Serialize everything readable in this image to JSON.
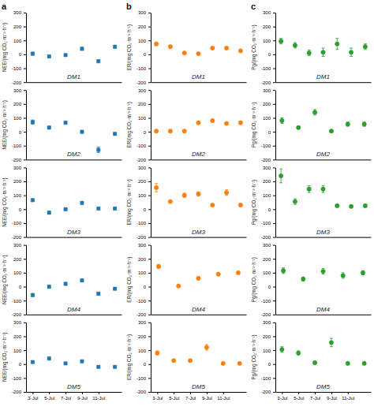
{
  "chart_data": [
    {
      "type": "scatter",
      "title": "a",
      "y_label": "NEE/(mg CO₂·m⁻²·h⁻¹)",
      "annotations": [
        "DM1"
      ],
      "marker": "square",
      "x": [
        0,
        1,
        2,
        3,
        4,
        5
      ],
      "values": [
        5,
        -15,
        -5,
        40,
        -50,
        55
      ],
      "errors": [
        10,
        8,
        8,
        10,
        10,
        10
      ],
      "xlim": [
        -0.4,
        5.4
      ],
      "ylim": [
        -200,
        300
      ],
      "yticks": [
        -200,
        -100,
        0,
        100,
        200,
        300
      ],
      "tick_labels": "y"
    },
    {
      "type": "scatter",
      "title": "b",
      "y_label": "ER/(mg CO₂·m⁻²·h⁻¹)",
      "annotations": [
        "DM1"
      ],
      "marker": "circle",
      "x": [
        0,
        1,
        2,
        3,
        4,
        5,
        6
      ],
      "values": [
        75,
        55,
        10,
        5,
        45,
        45,
        25
      ],
      "errors": [
        12,
        10,
        8,
        8,
        8,
        8,
        8
      ],
      "xlim": [
        -0.4,
        6.4
      ],
      "ylim": [
        -200,
        300
      ],
      "yticks": [
        -200,
        -100,
        0,
        100,
        200,
        300
      ],
      "tick_labels": "y"
    },
    {
      "type": "scatter",
      "title": "c",
      "y_label": "Pg/(mg CO₂·m⁻²·h⁻¹)",
      "annotations": [
        "DM1"
      ],
      "marker": "circle",
      "x": [
        0,
        1,
        2,
        3,
        4,
        5,
        6
      ],
      "values": [
        95,
        65,
        10,
        15,
        75,
        15,
        55
      ],
      "errors": [
        20,
        20,
        20,
        30,
        40,
        30,
        20
      ],
      "xlim": [
        -0.4,
        6.4
      ],
      "ylim": [
        -200,
        300
      ],
      "yticks": [
        -200,
        -100,
        0,
        100,
        200,
        300
      ],
      "tick_labels": "y"
    },
    {
      "type": "scatter",
      "y_label": "NEE/(mg CO₂·m⁻²·h⁻¹)",
      "annotations": [
        "DM2"
      ],
      "marker": "square",
      "x": [
        0,
        1,
        2,
        3,
        4,
        5
      ],
      "values": [
        70,
        30,
        65,
        0,
        -130,
        -15
      ],
      "errors": [
        15,
        10,
        10,
        10,
        20,
        10
      ],
      "xlim": [
        -0.4,
        5.4
      ],
      "ylim": [
        -200,
        300
      ],
      "yticks": [
        -200,
        -100,
        0,
        100,
        200,
        300
      ],
      "tick_labels": "y"
    },
    {
      "type": "scatter",
      "y_label": "ER/(mg CO₂·m⁻²·h⁻¹)",
      "annotations": [
        "DM2"
      ],
      "marker": "circle",
      "x": [
        0,
        1,
        2,
        3,
        4,
        5,
        6
      ],
      "values": [
        5,
        5,
        5,
        65,
        80,
        60,
        65
      ],
      "errors": [
        8,
        8,
        8,
        10,
        10,
        10,
        10
      ],
      "xlim": [
        -0.4,
        6.4
      ],
      "ylim": [
        -200,
        300
      ],
      "yticks": [
        -200,
        -100,
        0,
        100,
        200,
        300
      ],
      "tick_labels": "y"
    },
    {
      "type": "scatter",
      "y_label": "Pg/(mg CO₂·m⁻²·h⁻¹)",
      "annotations": [
        "DM2"
      ],
      "marker": "circle",
      "x": [
        0,
        1,
        2,
        3,
        4,
        5
      ],
      "values": [
        80,
        30,
        140,
        5,
        55,
        55
      ],
      "errors": [
        20,
        10,
        20,
        10,
        15,
        15
      ],
      "xlim": [
        -0.4,
        5.4
      ],
      "ylim": [
        -200,
        300
      ],
      "yticks": [
        -200,
        -100,
        0,
        100,
        200,
        300
      ],
      "tick_labels": "y"
    },
    {
      "type": "scatter",
      "y_label": "NEE/(mg CO₂·m⁻²·h⁻¹)",
      "annotations": [
        "DM3"
      ],
      "marker": "square",
      "x": [
        0,
        1,
        2,
        3,
        4,
        5
      ],
      "values": [
        65,
        -25,
        0,
        45,
        5,
        5
      ],
      "errors": [
        10,
        10,
        8,
        10,
        8,
        8
      ],
      "xlim": [
        -0.4,
        5.4
      ],
      "ylim": [
        -200,
        300
      ],
      "yticks": [
        -200,
        -100,
        0,
        100,
        200,
        300
      ],
      "tick_labels": "y"
    },
    {
      "type": "scatter",
      "y_label": "ER/(mg CO₂·m⁻²·h⁻¹)",
      "annotations": [
        "DM3"
      ],
      "marker": "circle",
      "x": [
        0,
        1,
        2,
        3,
        4,
        5,
        6
      ],
      "values": [
        155,
        55,
        100,
        110,
        30,
        120,
        30
      ],
      "errors": [
        30,
        10,
        15,
        15,
        8,
        20,
        10
      ],
      "xlim": [
        -0.4,
        6.4
      ],
      "ylim": [
        -200,
        300
      ],
      "yticks": [
        -200,
        -100,
        0,
        100,
        200,
        300
      ],
      "tick_labels": "y"
    },
    {
      "type": "scatter",
      "y_label": "Pg/(mg CO₂·m⁻²·h⁻¹)",
      "annotations": [
        "DM3"
      ],
      "marker": "circle",
      "x": [
        0,
        1,
        2,
        3,
        4,
        5,
        6
      ],
      "values": [
        240,
        55,
        145,
        145,
        25,
        20,
        25
      ],
      "errors": [
        50,
        20,
        25,
        25,
        10,
        10,
        10
      ],
      "xlim": [
        -0.4,
        6.4
      ],
      "ylim": [
        -200,
        300
      ],
      "yticks": [
        -200,
        -100,
        0,
        100,
        200,
        300
      ],
      "tick_labels": "y"
    },
    {
      "type": "scatter",
      "y_label": "NEE/(mg CO₂·m⁻²·h⁻¹)",
      "annotations": [
        "DM4"
      ],
      "marker": "square",
      "x": [
        0,
        1,
        2,
        3,
        4,
        5
      ],
      "values": [
        -60,
        0,
        20,
        45,
        -50,
        -15
      ],
      "errors": [
        10,
        10,
        10,
        10,
        10,
        8
      ],
      "xlim": [
        -0.4,
        5.4
      ],
      "ylim": [
        -200,
        300
      ],
      "yticks": [
        -200,
        -100,
        0,
        100,
        200,
        300
      ],
      "tick_labels": "y"
    },
    {
      "type": "scatter",
      "y_label": "ER/(mg CO₂·m⁻²·h⁻¹)",
      "annotations": [
        "DM4"
      ],
      "marker": "circle",
      "x": [
        0,
        1,
        2,
        3,
        4
      ],
      "values": [
        145,
        5,
        60,
        90,
        100
      ],
      "errors": [
        15,
        8,
        10,
        10,
        10
      ],
      "xlim": [
        -0.4,
        4.4
      ],
      "ylim": [
        -200,
        300
      ],
      "yticks": [
        -200,
        -100,
        0,
        100,
        200,
        300
      ],
      "tick_labels": "y"
    },
    {
      "type": "scatter",
      "y_label": "Pg/(mg CO₂·m⁻²·h⁻¹)",
      "annotations": [
        "DM4"
      ],
      "marker": "circle",
      "x": [
        0,
        1,
        2,
        3,
        4
      ],
      "values": [
        115,
        55,
        110,
        80,
        100
      ],
      "errors": [
        20,
        15,
        20,
        20,
        15
      ],
      "xlim": [
        -0.4,
        4.4
      ],
      "ylim": [
        -200,
        300
      ],
      "yticks": [
        -200,
        -100,
        0,
        100,
        200,
        300
      ],
      "tick_labels": "y"
    },
    {
      "type": "scatter",
      "y_label": "NEE/(mg CO₂·m⁻²·h⁻¹)",
      "annotations": [
        "DM5"
      ],
      "marker": "square",
      "x": [
        0,
        1,
        2,
        3,
        4,
        5
      ],
      "values": [
        15,
        40,
        5,
        20,
        -20,
        -20
      ],
      "errors": [
        8,
        10,
        8,
        8,
        8,
        8
      ],
      "xlim": [
        -0.4,
        5.4
      ],
      "ylim": [
        -200,
        300
      ],
      "yticks": [
        -200,
        -100,
        0,
        100,
        200,
        300
      ],
      "xticks": [
        {
          "value": 0,
          "label": "3-Jul"
        },
        {
          "value": 1,
          "label": "5-Jul"
        },
        {
          "value": 2,
          "label": "7-Jul"
        },
        {
          "value": 3,
          "label": "9-Jul"
        },
        {
          "value": 4,
          "label": "11-Jul"
        }
      ]
    },
    {
      "type": "scatter",
      "y_label": "ER/(mg CO₂·m⁻²·h⁻¹)",
      "annotations": [
        "DM5"
      ],
      "marker": "circle",
      "x": [
        0,
        1,
        2,
        3,
        4,
        5
      ],
      "values": [
        80,
        25,
        25,
        120,
        5,
        5
      ],
      "errors": [
        15,
        8,
        8,
        20,
        8,
        8
      ],
      "xlim": [
        -0.4,
        5.4
      ],
      "ylim": [
        -200,
        300
      ],
      "yticks": [
        -200,
        -100,
        0,
        100,
        200,
        300
      ],
      "xticks": [
        {
          "value": 0,
          "label": "3-Jul"
        },
        {
          "value": 1,
          "label": "5-Jul"
        },
        {
          "value": 2,
          "label": "7-Jul"
        },
        {
          "value": 3,
          "label": "9-Jul"
        },
        {
          "value": 4,
          "label": "11-Jul"
        }
      ]
    },
    {
      "type": "scatter",
      "y_label": "Pg/(mg CO₂·m⁻²·h⁻¹)",
      "annotations": [
        "DM5"
      ],
      "marker": "circle",
      "x": [
        0,
        1,
        2,
        3,
        4,
        5
      ],
      "values": [
        105,
        80,
        10,
        155,
        5,
        5
      ],
      "errors": [
        20,
        15,
        10,
        30,
        10,
        10
      ],
      "xlim": [
        -0.4,
        5.4
      ],
      "ylim": [
        -200,
        300
      ],
      "yticks": [
        -200,
        -100,
        0,
        100,
        200,
        300
      ],
      "xticks": [
        {
          "value": 0,
          "label": "3-Jul"
        },
        {
          "value": 1,
          "label": "5-Jul"
        },
        {
          "value": 2,
          "label": "7-Jul"
        },
        {
          "value": 3,
          "label": "9-Jul"
        },
        {
          "value": 4,
          "label": "11-Jul"
        }
      ]
    }
  ]
}
